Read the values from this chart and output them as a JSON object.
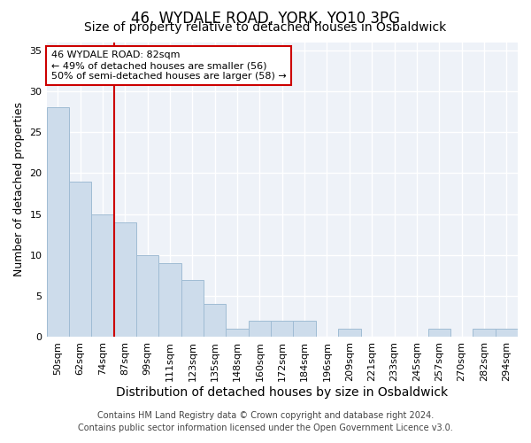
{
  "title1": "46, WYDALE ROAD, YORK, YO10 3PG",
  "title2": "Size of property relative to detached houses in Osbaldwick",
  "xlabel": "Distribution of detached houses by size in Osbaldwick",
  "ylabel": "Number of detached properties",
  "categories": [
    "50sqm",
    "62sqm",
    "74sqm",
    "87sqm",
    "99sqm",
    "111sqm",
    "123sqm",
    "135sqm",
    "148sqm",
    "160sqm",
    "172sqm",
    "184sqm",
    "196sqm",
    "209sqm",
    "221sqm",
    "233sqm",
    "245sqm",
    "257sqm",
    "270sqm",
    "282sqm",
    "294sqm"
  ],
  "values": [
    28,
    19,
    15,
    14,
    10,
    9,
    7,
    4,
    1,
    2,
    2,
    2,
    0,
    1,
    0,
    0,
    0,
    1,
    0,
    1,
    1
  ],
  "bar_color": "#cddceb",
  "bar_edge_color": "#a0bcd4",
  "vline_x": 2.5,
  "vline_color": "#cc0000",
  "annotation_text": "46 WYDALE ROAD: 82sqm\n← 49% of detached houses are smaller (56)\n50% of semi-detached houses are larger (58) →",
  "annotation_box_facecolor": "#ffffff",
  "annotation_box_edgecolor": "#cc0000",
  "ylim": [
    0,
    36
  ],
  "yticks": [
    0,
    5,
    10,
    15,
    20,
    25,
    30,
    35
  ],
  "footer1": "Contains HM Land Registry data © Crown copyright and database right 2024.",
  "footer2": "Contains public sector information licensed under the Open Government Licence v3.0.",
  "bg_color": "#ffffff",
  "plot_bg_color": "#eef2f8",
  "grid_color": "#ffffff",
  "title1_fontsize": 12,
  "title2_fontsize": 10,
  "xlabel_fontsize": 10,
  "ylabel_fontsize": 9,
  "tick_fontsize": 8,
  "annot_fontsize": 8,
  "footer_fontsize": 7
}
